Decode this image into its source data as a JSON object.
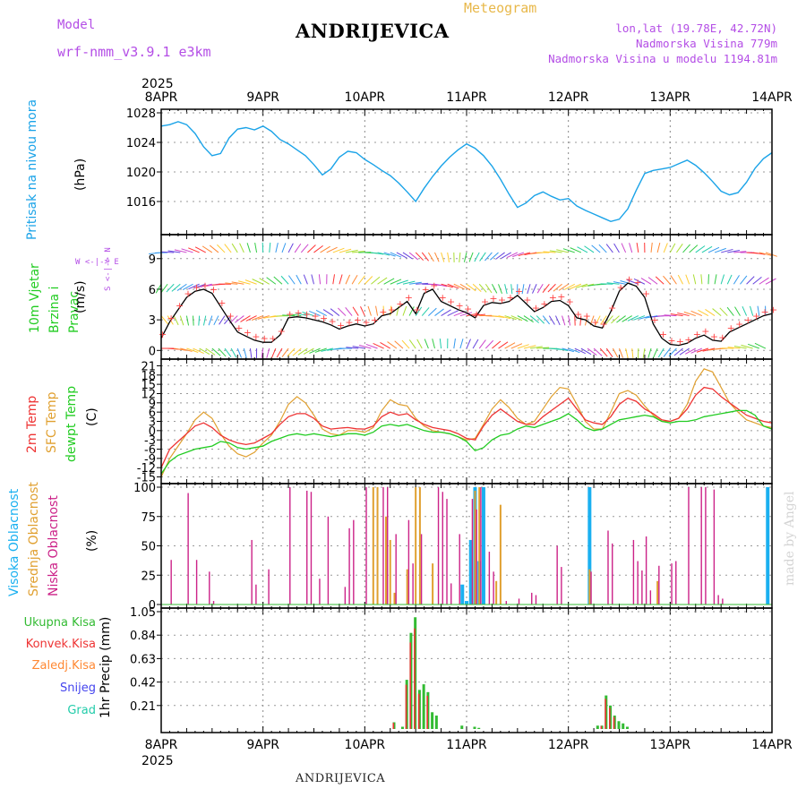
{
  "header": {
    "model_label": "Model",
    "model_value": "wrf-nmm_v3.9.1 e3km",
    "title": "ANDRIJEVICA",
    "subtitle": "Meteogram",
    "coords": "lon,lat (19.78E, 42.72N)",
    "elevation": "Nadmorska Visina 779m",
    "model_elevation": "Nadmorska Visina u modelu 1194.81m"
  },
  "footer": {
    "station": "ANDRIJEVICA",
    "watermark": "made by Angel"
  },
  "time_axis": {
    "year": "2025",
    "labels": [
      "8APR",
      "9APR",
      "10APR",
      "11APR",
      "12APR",
      "13APR",
      "14APR"
    ],
    "hours": [
      0,
      24,
      48,
      72,
      96,
      120,
      144
    ]
  },
  "colors": {
    "pressure": "#1aa3e8",
    "wind_speed": "#000000",
    "wind_marker": "#ff4444",
    "temp2m": "#ee3333",
    "sfc_temp": "#e0a030",
    "dewpoint": "#22cc22",
    "cloud_high": "#1ab0f0",
    "cloud_mid": "#e0a030",
    "cloud_low": "#cc2288",
    "precip_total": "#33bb33",
    "precip_conv": "#ee3333",
    "precip_strat": "#ff8833",
    "precip_snow": "#4444ee",
    "precip_graupel": "#22ccaa"
  },
  "chart_data": [
    {
      "type": "line",
      "name": "pressure",
      "title": "Pritisak na nivou mora",
      "ylabel": "(hPa)",
      "ylim": [
        1012,
        1028
      ],
      "yticks": [
        1016,
        1020,
        1024,
        1028
      ],
      "x": [
        0,
        2,
        4,
        6,
        8,
        10,
        12,
        14,
        16,
        18,
        20,
        22,
        24,
        26,
        28,
        30,
        32,
        34,
        36,
        38,
        40,
        42,
        44,
        46,
        48,
        50,
        52,
        54,
        56,
        58,
        60,
        62,
        64,
        66,
        68,
        70,
        72,
        74,
        76,
        78,
        80,
        82,
        84,
        86,
        88,
        90,
        92,
        94,
        96,
        98,
        100,
        102,
        104,
        106,
        108,
        110,
        112,
        114,
        116,
        118,
        120,
        122,
        124,
        126,
        128,
        130,
        132,
        134,
        136,
        138,
        140,
        142,
        144
      ],
      "series": [
        {
          "name": "Pritisak",
          "values": [
            1026.2,
            1026.4,
            1026.8,
            1026.4,
            1025.2,
            1023.4,
            1022.2,
            1022.5,
            1024.6,
            1025.8,
            1026.0,
            1025.7,
            1026.2,
            1025.5,
            1024.4,
            1023.8,
            1023.0,
            1022.2,
            1021.0,
            1019.6,
            1020.4,
            1022.0,
            1022.8,
            1022.6,
            1021.7,
            1021.0,
            1020.2,
            1019.5,
            1018.5,
            1017.3,
            1016.0,
            1017.8,
            1019.4,
            1020.8,
            1022.0,
            1023.0,
            1023.8,
            1023.2,
            1022.2,
            1020.8,
            1019.0,
            1017.0,
            1015.2,
            1015.8,
            1016.8,
            1017.3,
            1016.7,
            1016.2,
            1016.4,
            1015.4,
            1014.8,
            1014.3,
            1013.8,
            1013.3,
            1013.6,
            1015.0,
            1017.5,
            1019.8,
            1020.2,
            1020.4,
            1020.6,
            1021.1,
            1021.6,
            1020.9,
            1019.9,
            1018.7,
            1017.4,
            1016.9,
            1017.2,
            1018.6,
            1020.5,
            1021.8,
            1022.6
          ]
        }
      ]
    },
    {
      "type": "line",
      "name": "wind",
      "title": "10m Vjetar Brzina i Pravac",
      "ylabel": "(m/s)",
      "compass": "W <-|-> E",
      "compass_ns": "S <-|-> N",
      "ylim": [
        -0.5,
        11
      ],
      "yticks": [
        0,
        3,
        6,
        9
      ],
      "x": [
        0,
        2,
        4,
        6,
        8,
        10,
        12,
        14,
        16,
        18,
        20,
        22,
        24,
        26,
        28,
        30,
        32,
        34,
        36,
        38,
        40,
        42,
        44,
        46,
        48,
        50,
        52,
        54,
        56,
        58,
        60,
        62,
        64,
        66,
        68,
        70,
        72,
        74,
        76,
        78,
        80,
        82,
        84,
        86,
        88,
        90,
        92,
        94,
        96,
        98,
        100,
        102,
        104,
        106,
        108,
        110,
        112,
        114,
        116,
        118,
        120,
        122,
        124,
        126,
        128,
        130,
        132,
        134,
        136,
        138,
        140,
        142,
        144
      ],
      "series": [
        {
          "name": "Brzina vjetra",
          "values": [
            1.2,
            2.8,
            4.0,
            5.2,
            5.8,
            6.0,
            5.6,
            4.3,
            3.0,
            1.8,
            1.4,
            1.0,
            0.8,
            0.8,
            1.5,
            3.2,
            3.3,
            3.2,
            3.0,
            2.8,
            2.5,
            2.1,
            2.4,
            2.6,
            2.4,
            2.6,
            3.4,
            3.6,
            4.2,
            4.8,
            3.6,
            5.6,
            6.0,
            4.8,
            4.4,
            4.0,
            3.7,
            3.2,
            4.4,
            4.7,
            4.6,
            4.8,
            5.4,
            4.6,
            3.8,
            4.2,
            4.8,
            4.9,
            4.4,
            3.2,
            3.0,
            2.4,
            2.2,
            3.8,
            5.8,
            6.6,
            6.3,
            5.2,
            2.6,
            1.2,
            0.6,
            0.5,
            0.7,
            1.2,
            1.5,
            1.0,
            0.9,
            1.8,
            2.2,
            2.6,
            3.0,
            3.4,
            3.6
          ]
        }
      ]
    },
    {
      "type": "line",
      "name": "temperature",
      "legend": [
        "2m Temp",
        "SFC Temp",
        "dewpt Temp"
      ],
      "ylabel": "(C)",
      "ylim": [
        -16,
        22
      ],
      "yticks": [
        -15,
        -12,
        -9,
        -6,
        -3,
        0,
        3,
        6,
        9,
        12,
        15,
        18,
        21
      ],
      "x": [
        0,
        2,
        4,
        6,
        8,
        10,
        12,
        14,
        16,
        18,
        20,
        22,
        24,
        26,
        28,
        30,
        32,
        34,
        36,
        38,
        40,
        42,
        44,
        46,
        48,
        50,
        52,
        54,
        56,
        58,
        60,
        62,
        64,
        66,
        68,
        70,
        72,
        74,
        76,
        78,
        80,
        82,
        84,
        86,
        88,
        90,
        92,
        94,
        96,
        98,
        100,
        102,
        104,
        106,
        108,
        110,
        112,
        114,
        116,
        118,
        120,
        122,
        124,
        126,
        128,
        130,
        132,
        134,
        136,
        138,
        140,
        142,
        144
      ],
      "series": [
        {
          "name": "2m Temp",
          "values": [
            -12.0,
            -6.0,
            -3.5,
            -1.0,
            1.5,
            2.5,
            1.0,
            -1.5,
            -3.0,
            -4.0,
            -4.5,
            -4.0,
            -2.5,
            -1.0,
            2.0,
            4.5,
            5.5,
            5.5,
            4.0,
            1.5,
            0.5,
            0.8,
            1.0,
            0.6,
            0.5,
            1.5,
            4.5,
            6.0,
            5.0,
            5.5,
            3.5,
            2.0,
            1.0,
            0.5,
            0.0,
            -1.0,
            -2.5,
            -3.0,
            1.5,
            5.0,
            7.0,
            5.0,
            3.0,
            2.0,
            2.0,
            4.5,
            6.5,
            8.5,
            10.5,
            7.0,
            3.5,
            2.5,
            2.0,
            4.5,
            8.5,
            10.5,
            9.5,
            7.0,
            5.5,
            3.5,
            3.0,
            4.0,
            7.0,
            11.5,
            14.0,
            13.5,
            11.0,
            9.0,
            7.0,
            5.0,
            4.0,
            3.0,
            2.5
          ]
        },
        {
          "name": "SFC Temp",
          "values": [
            -15.0,
            -9.0,
            -5.0,
            -1.0,
            3.5,
            6.0,
            4.0,
            -1.0,
            -5.0,
            -7.5,
            -8.5,
            -7.0,
            -4.0,
            -1.5,
            3.0,
            8.5,
            11.0,
            9.0,
            5.0,
            0.5,
            -1.0,
            -1.5,
            0.0,
            0.0,
            -0.5,
            1.0,
            6.5,
            10.0,
            8.5,
            8.0,
            4.0,
            1.5,
            0.0,
            -0.5,
            -1.0,
            -2.0,
            -3.0,
            -2.5,
            2.0,
            7.0,
            10.0,
            7.5,
            4.0,
            2.0,
            3.0,
            7.0,
            11.0,
            14.0,
            13.5,
            8.5,
            3.0,
            0.5,
            0.5,
            6.0,
            12.0,
            13.0,
            11.5,
            8.0,
            5.0,
            3.0,
            3.0,
            4.0,
            8.5,
            16.0,
            20.0,
            19.0,
            14.0,
            9.0,
            6.0,
            3.5,
            2.5,
            1.5,
            1.0
          ]
        },
        {
          "name": "dewpt Temp",
          "values": [
            -14.0,
            -10.0,
            -8.0,
            -7.0,
            -6.0,
            -5.5,
            -5.0,
            -3.5,
            -4.0,
            -5.5,
            -6.0,
            -5.5,
            -5.0,
            -3.5,
            -2.5,
            -1.5,
            -1.0,
            -1.5,
            -1.0,
            -1.5,
            -2.0,
            -1.5,
            -1.0,
            -1.0,
            -1.5,
            -0.5,
            1.5,
            2.0,
            1.5,
            2.0,
            1.0,
            0.0,
            -0.5,
            -0.5,
            -1.0,
            -2.0,
            -3.5,
            -6.5,
            -5.5,
            -3.0,
            -1.5,
            -1.0,
            0.5,
            1.5,
            1.0,
            2.0,
            3.0,
            4.0,
            5.5,
            3.5,
            1.0,
            0.0,
            0.5,
            2.0,
            3.5,
            4.0,
            4.5,
            5.0,
            4.5,
            3.0,
            2.5,
            3.0,
            3.0,
            3.5,
            4.5,
            5.0,
            5.5,
            6.0,
            6.5,
            6.5,
            5.0,
            1.5,
            0.5
          ]
        }
      ]
    },
    {
      "type": "bar",
      "name": "clouds",
      "legend": [
        "Visoka Oblacnost",
        "Srednja Oblacnost",
        "Niska Oblacnost"
      ],
      "ylabel": "(%)",
      "ylim": [
        0,
        100
      ],
      "yticks": [
        0,
        25,
        50,
        75,
        100
      ],
      "low": {
        "x": [
          2,
          6,
          8,
          11,
          12,
          21,
          22,
          25,
          30,
          34,
          35,
          37,
          39,
          43,
          44,
          45,
          48,
          52,
          53,
          55,
          58,
          59,
          61,
          65,
          66,
          67,
          68,
          70,
          73,
          74,
          75,
          77,
          78,
          81,
          84,
          87,
          88,
          93,
          94,
          101,
          105,
          106,
          111,
          112,
          113,
          114,
          115,
          117,
          120,
          121,
          124,
          127,
          128,
          130,
          131,
          132,
          142
        ],
        "values": [
          38,
          95,
          38,
          28,
          3,
          55,
          17,
          30,
          100,
          97,
          96,
          22,
          75,
          15,
          65,
          72,
          100,
          100,
          100,
          60,
          72,
          35,
          60,
          100,
          96,
          90,
          18,
          60,
          90,
          81,
          100,
          45,
          28,
          3,
          5,
          10,
          8,
          50,
          32,
          28,
          63,
          52,
          55,
          37,
          29,
          58,
          12,
          33,
          35,
          37,
          100,
          100,
          100,
          98,
          8,
          5,
          0
        ]
      },
      "mid": {
        "x": [
          50,
          51,
          53,
          54,
          55,
          58,
          60,
          61,
          64,
          74,
          75,
          79,
          80,
          101,
          117
        ],
        "values": [
          100,
          100,
          75,
          55,
          10,
          30,
          100,
          100,
          35,
          97,
          100,
          20,
          85,
          30,
          20
        ]
      },
      "high": {
        "x": [
          71,
          72,
          73,
          74,
          75,
          76,
          101,
          143
        ],
        "values": [
          17,
          3,
          55,
          100,
          37,
          100,
          100,
          100
        ]
      }
    },
    {
      "type": "bar",
      "name": "precip",
      "legend": [
        "Ukupna Kisa",
        "Konvek.Kisa",
        "Zaledj.Kisa",
        "Snijeg",
        "Grad"
      ],
      "ylabel": "1hr Precip (mm)",
      "ylim": [
        0,
        1.05
      ],
      "yticks": [
        0.21,
        0.42,
        0.63,
        0.84,
        1.05
      ],
      "total": {
        "x": [
          55,
          57,
          58,
          59,
          60,
          61,
          62,
          63,
          64,
          65,
          71,
          74,
          75,
          103,
          104,
          105,
          106,
          107,
          108,
          109,
          110
        ],
        "values": [
          0.06,
          0.02,
          0.44,
          0.86,
          1.0,
          0.35,
          0.4,
          0.33,
          0.15,
          0.12,
          0.03,
          0.02,
          0.01,
          0.03,
          0.03,
          0.3,
          0.21,
          0.12,
          0.07,
          0.05,
          0.02
        ]
      },
      "convective": {
        "x": [
          55,
          58,
          59,
          60,
          61,
          63,
          104,
          105,
          106,
          107
        ],
        "values": [
          0.06,
          0.44,
          0.86,
          1.0,
          0.35,
          0.33,
          0.03,
          0.3,
          0.21,
          0.12
        ]
      }
    }
  ]
}
